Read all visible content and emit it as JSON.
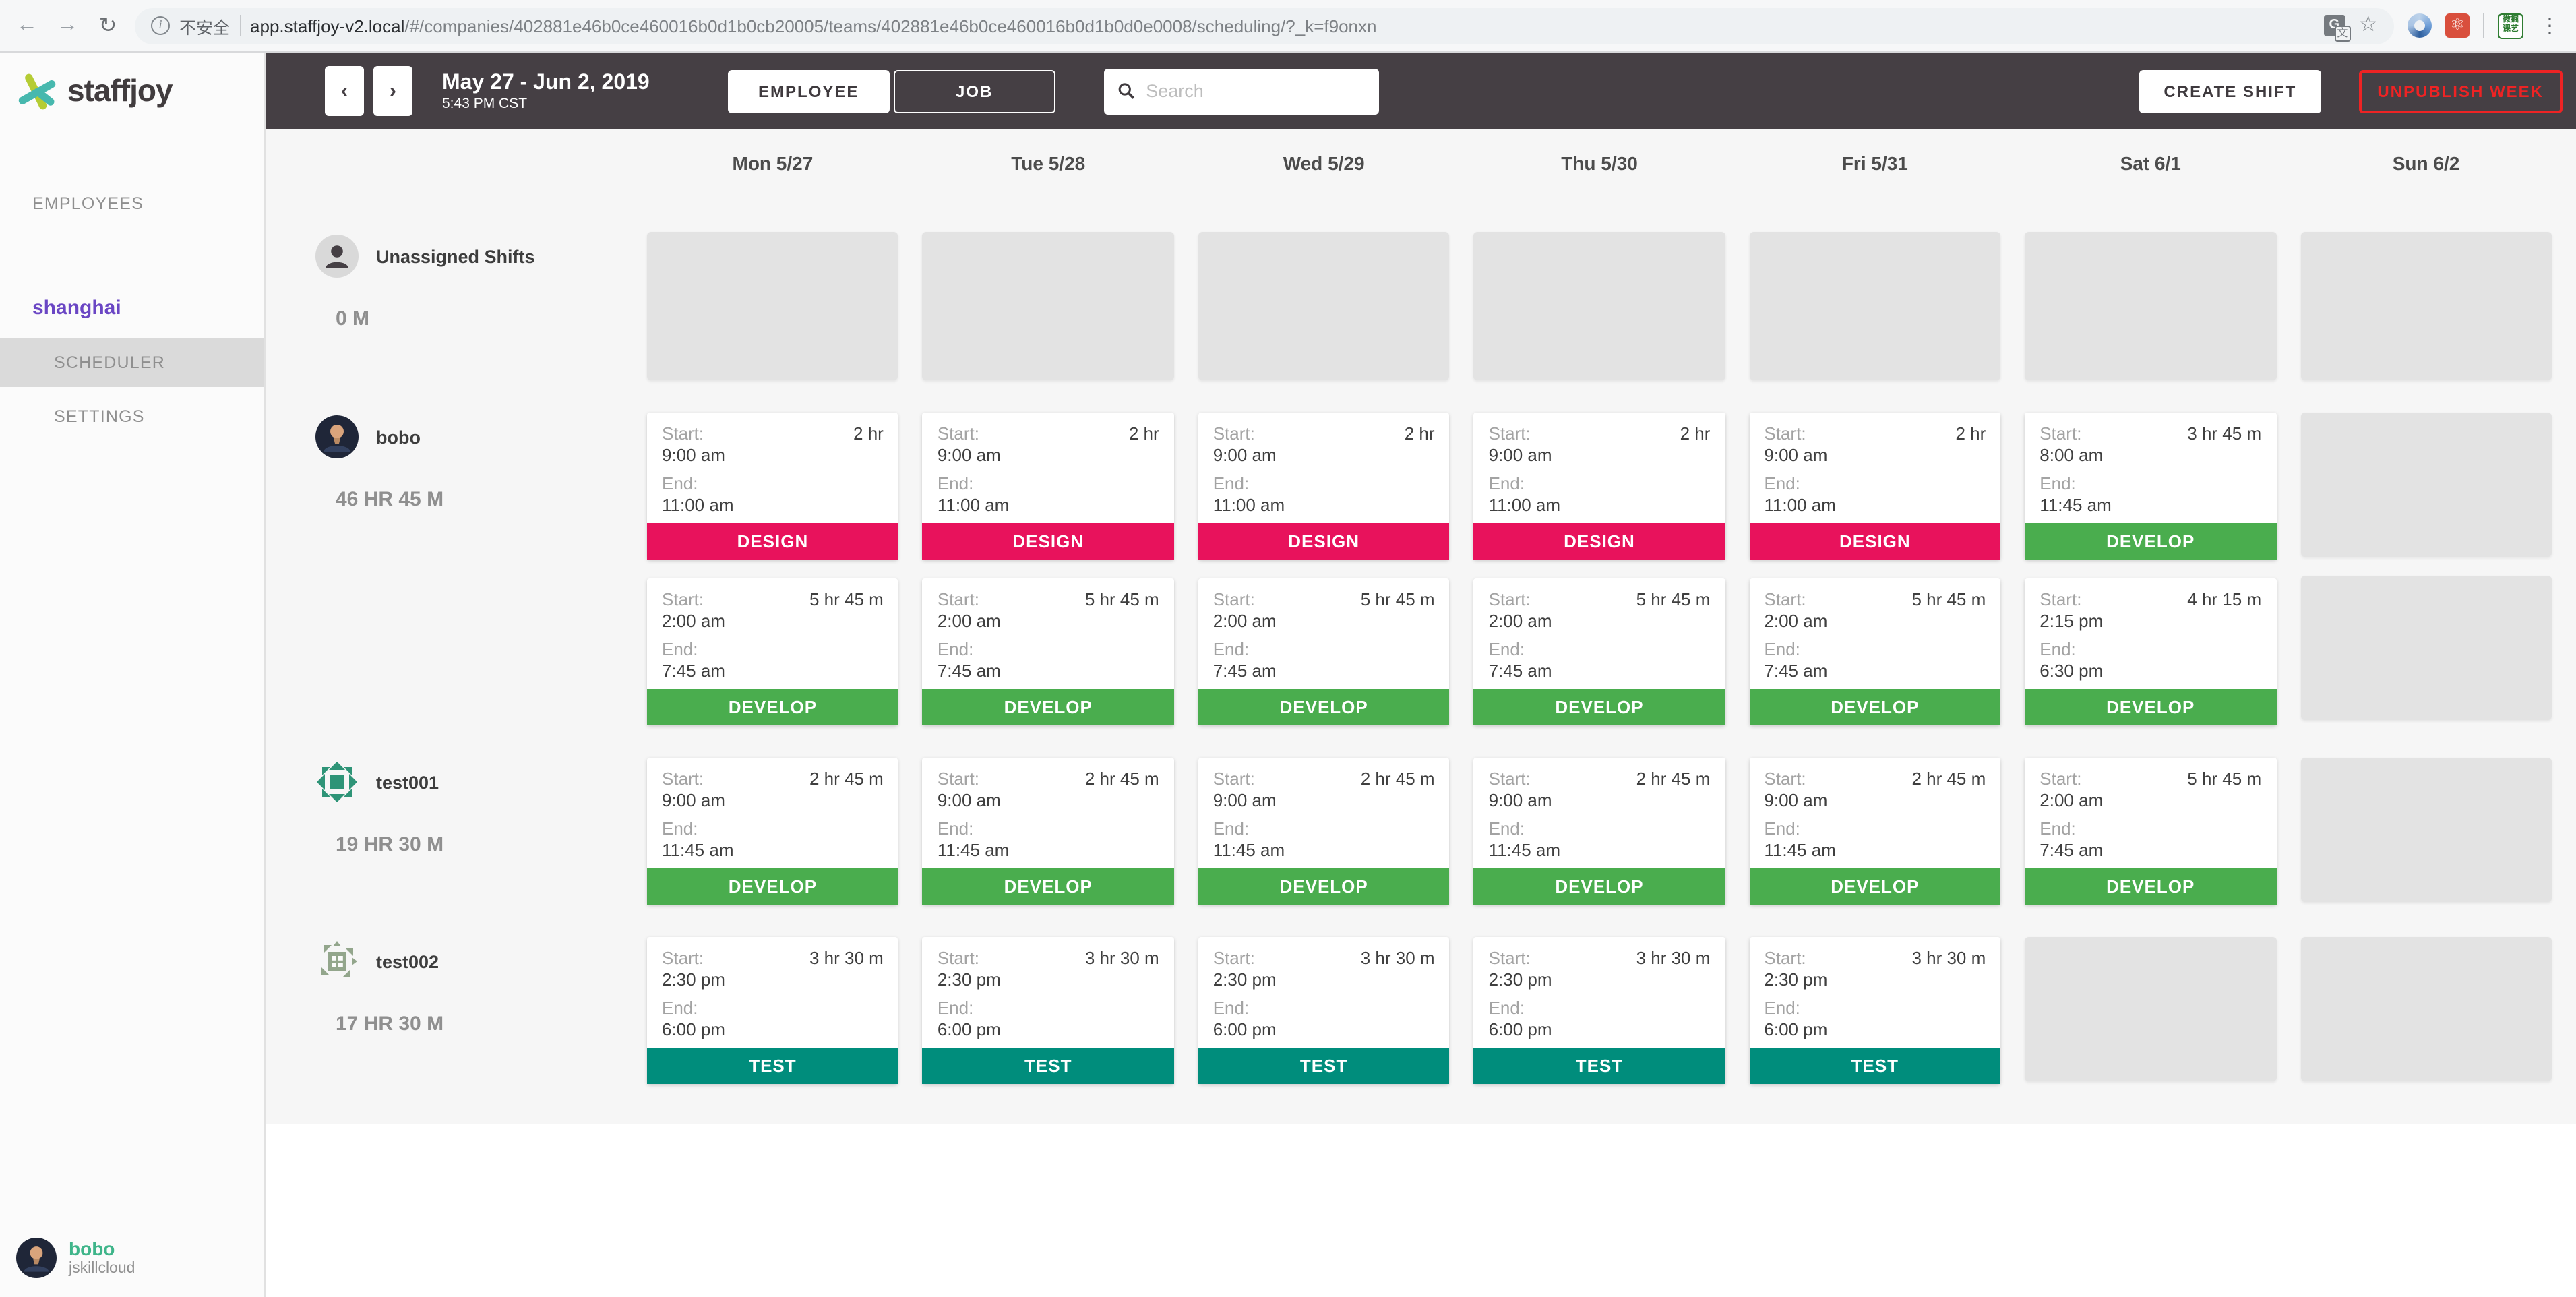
{
  "browser": {
    "security_label": "不安全",
    "url_host": "app.staffjoy-v2.local",
    "url_path": "/#/companies/402881e46b0ce460016b0d1b0cb20005/teams/402881e46b0ce460016b0d1b0d0e0008/scheduling/?_k=f9onxn",
    "extension_badge": "微掘\n课艺"
  },
  "topbar": {
    "date_range": "May 27 - Jun 2, 2019",
    "time": "5:43 PM CST",
    "employee_label": "EMPLOYEE",
    "job_label": "JOB",
    "search_placeholder": "Search",
    "create_shift_label": "CREATE SHIFT",
    "unpublish_label": "UNPUBLISH WEEK"
  },
  "sidebar": {
    "brand": "staffjoy",
    "employees_label": "EMPLOYEES",
    "team_name": "shanghai",
    "scheduler_label": "SCHEDULER",
    "settings_label": "SETTINGS",
    "user_name": "bobo",
    "user_company": "jskillcloud"
  },
  "job_colors": {
    "DESIGN": "#e8125c",
    "DEVELOP": "#4aad4e",
    "TEST": "#008d7c"
  },
  "calendar": {
    "days": [
      "Mon 5/27",
      "Tue 5/28",
      "Wed 5/29",
      "Thu 5/30",
      "Fri 5/31",
      "Sat 6/1",
      "Sun 6/2"
    ],
    "card_labels": {
      "start": "Start:",
      "end": "End:"
    },
    "rows": [
      {
        "name": "Unassigned Shifts",
        "hours": "0 M",
        "avatar": "unassigned-person",
        "cells": [
          [
            {
              "empty": true
            }
          ],
          [
            {
              "empty": true
            }
          ],
          [
            {
              "empty": true
            }
          ],
          [
            {
              "empty": true
            }
          ],
          [
            {
              "empty": true
            }
          ],
          [
            {
              "empty": true
            }
          ],
          [
            {
              "empty": true
            }
          ]
        ]
      },
      {
        "name": "bobo",
        "hours": "46 HR 45 M",
        "avatar": "photo-bobo",
        "cells": [
          [
            {
              "start": "9:00 am",
              "end": "11:00 am",
              "duration": "2 hr",
              "job": "DESIGN"
            },
            {
              "start": "2:00 am",
              "end": "7:45 am",
              "duration": "5 hr 45 m",
              "job": "DEVELOP"
            }
          ],
          [
            {
              "start": "9:00 am",
              "end": "11:00 am",
              "duration": "2 hr",
              "job": "DESIGN"
            },
            {
              "start": "2:00 am",
              "end": "7:45 am",
              "duration": "5 hr 45 m",
              "job": "DEVELOP"
            }
          ],
          [
            {
              "start": "9:00 am",
              "end": "11:00 am",
              "duration": "2 hr",
              "job": "DESIGN"
            },
            {
              "start": "2:00 am",
              "end": "7:45 am",
              "duration": "5 hr 45 m",
              "job": "DEVELOP"
            }
          ],
          [
            {
              "start": "9:00 am",
              "end": "11:00 am",
              "duration": "2 hr",
              "job": "DESIGN"
            },
            {
              "start": "2:00 am",
              "end": "7:45 am",
              "duration": "5 hr 45 m",
              "job": "DEVELOP"
            }
          ],
          [
            {
              "start": "9:00 am",
              "end": "11:00 am",
              "duration": "2 hr",
              "job": "DESIGN"
            },
            {
              "start": "2:00 am",
              "end": "7:45 am",
              "duration": "5 hr 45 m",
              "job": "DEVELOP"
            }
          ],
          [
            {
              "start": "8:00 am",
              "end": "11:45 am",
              "duration": "3 hr 45 m",
              "job": "DEVELOP"
            },
            {
              "start": "2:15 pm",
              "end": "6:30 pm",
              "duration": "4 hr 15 m",
              "job": "DEVELOP"
            }
          ],
          [
            {
              "empty": true
            },
            {
              "empty": true
            }
          ]
        ]
      },
      {
        "name": "test001",
        "hours": "19 HR 30 M",
        "avatar": "identicon-green",
        "cells": [
          [
            {
              "start": "9:00 am",
              "end": "11:45 am",
              "duration": "2 hr 45 m",
              "job": "DEVELOP"
            }
          ],
          [
            {
              "start": "9:00 am",
              "end": "11:45 am",
              "duration": "2 hr 45 m",
              "job": "DEVELOP"
            }
          ],
          [
            {
              "start": "9:00 am",
              "end": "11:45 am",
              "duration": "2 hr 45 m",
              "job": "DEVELOP"
            }
          ],
          [
            {
              "start": "9:00 am",
              "end": "11:45 am",
              "duration": "2 hr 45 m",
              "job": "DEVELOP"
            }
          ],
          [
            {
              "start": "9:00 am",
              "end": "11:45 am",
              "duration": "2 hr 45 m",
              "job": "DEVELOP"
            }
          ],
          [
            {
              "start": "2:00 am",
              "end": "7:45 am",
              "duration": "5 hr 45 m",
              "job": "DEVELOP"
            }
          ],
          [
            {
              "empty": true
            }
          ]
        ]
      },
      {
        "name": "test002",
        "hours": "17 HR 30 M",
        "avatar": "identicon-sage",
        "cells": [
          [
            {
              "start": "2:30 pm",
              "end": "6:00 pm",
              "duration": "3 hr 30 m",
              "job": "TEST"
            }
          ],
          [
            {
              "start": "2:30 pm",
              "end": "6:00 pm",
              "duration": "3 hr 30 m",
              "job": "TEST"
            }
          ],
          [
            {
              "start": "2:30 pm",
              "end": "6:00 pm",
              "duration": "3 hr 30 m",
              "job": "TEST"
            }
          ],
          [
            {
              "start": "2:30 pm",
              "end": "6:00 pm",
              "duration": "3 hr 30 m",
              "job": "TEST"
            }
          ],
          [
            {
              "start": "2:30 pm",
              "end": "6:00 pm",
              "duration": "3 hr 30 m",
              "job": "TEST"
            }
          ],
          [
            {
              "empty": true
            }
          ],
          [
            {
              "empty": true
            }
          ]
        ]
      }
    ]
  }
}
